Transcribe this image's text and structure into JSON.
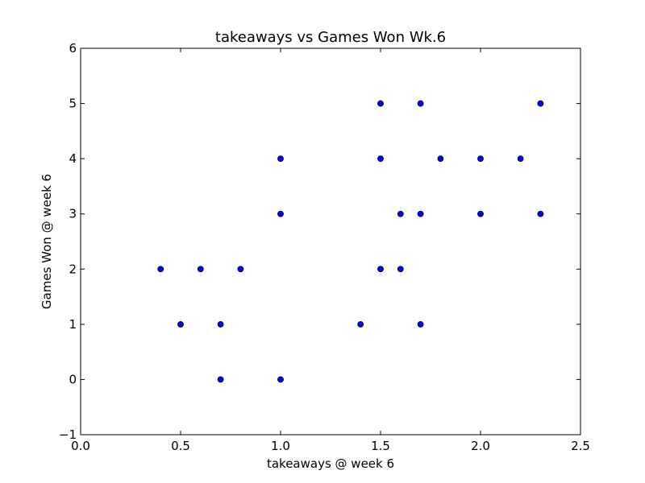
{
  "chart_data": {
    "type": "scatter",
    "title": "takeaways vs Games Won Wk.6",
    "xlabel": "takeaways @ week 6",
    "ylabel": "Games Won @ week 6",
    "xlim": [
      0.0,
      2.5
    ],
    "ylim": [
      -1,
      6
    ],
    "x_ticks": [
      "0.0",
      "0.5",
      "1.0",
      "1.5",
      "2.0",
      "2.5"
    ],
    "y_ticks": [
      "−1",
      "0",
      "1",
      "2",
      "3",
      "4",
      "5",
      "6"
    ],
    "grid": false,
    "legend": "none",
    "marker_color": "#0000ff",
    "marker_edge_color": "#000000",
    "points": [
      {
        "x": 0.4,
        "y": 2
      },
      {
        "x": 0.5,
        "y": 1
      },
      {
        "x": 0.6,
        "y": 2
      },
      {
        "x": 0.7,
        "y": 1
      },
      {
        "x": 0.7,
        "y": 0
      },
      {
        "x": 0.8,
        "y": 2
      },
      {
        "x": 1.0,
        "y": 4
      },
      {
        "x": 1.0,
        "y": 3
      },
      {
        "x": 1.0,
        "y": 0
      },
      {
        "x": 1.4,
        "y": 1
      },
      {
        "x": 1.5,
        "y": 5
      },
      {
        "x": 1.5,
        "y": 4
      },
      {
        "x": 1.5,
        "y": 2
      },
      {
        "x": 1.6,
        "y": 3
      },
      {
        "x": 1.6,
        "y": 2
      },
      {
        "x": 1.7,
        "y": 5
      },
      {
        "x": 1.7,
        "y": 3
      },
      {
        "x": 1.7,
        "y": 1
      },
      {
        "x": 1.8,
        "y": 4
      },
      {
        "x": 2.0,
        "y": 4
      },
      {
        "x": 2.0,
        "y": 3
      },
      {
        "x": 2.2,
        "y": 4
      },
      {
        "x": 2.3,
        "y": 5
      },
      {
        "x": 2.3,
        "y": 3
      }
    ]
  }
}
